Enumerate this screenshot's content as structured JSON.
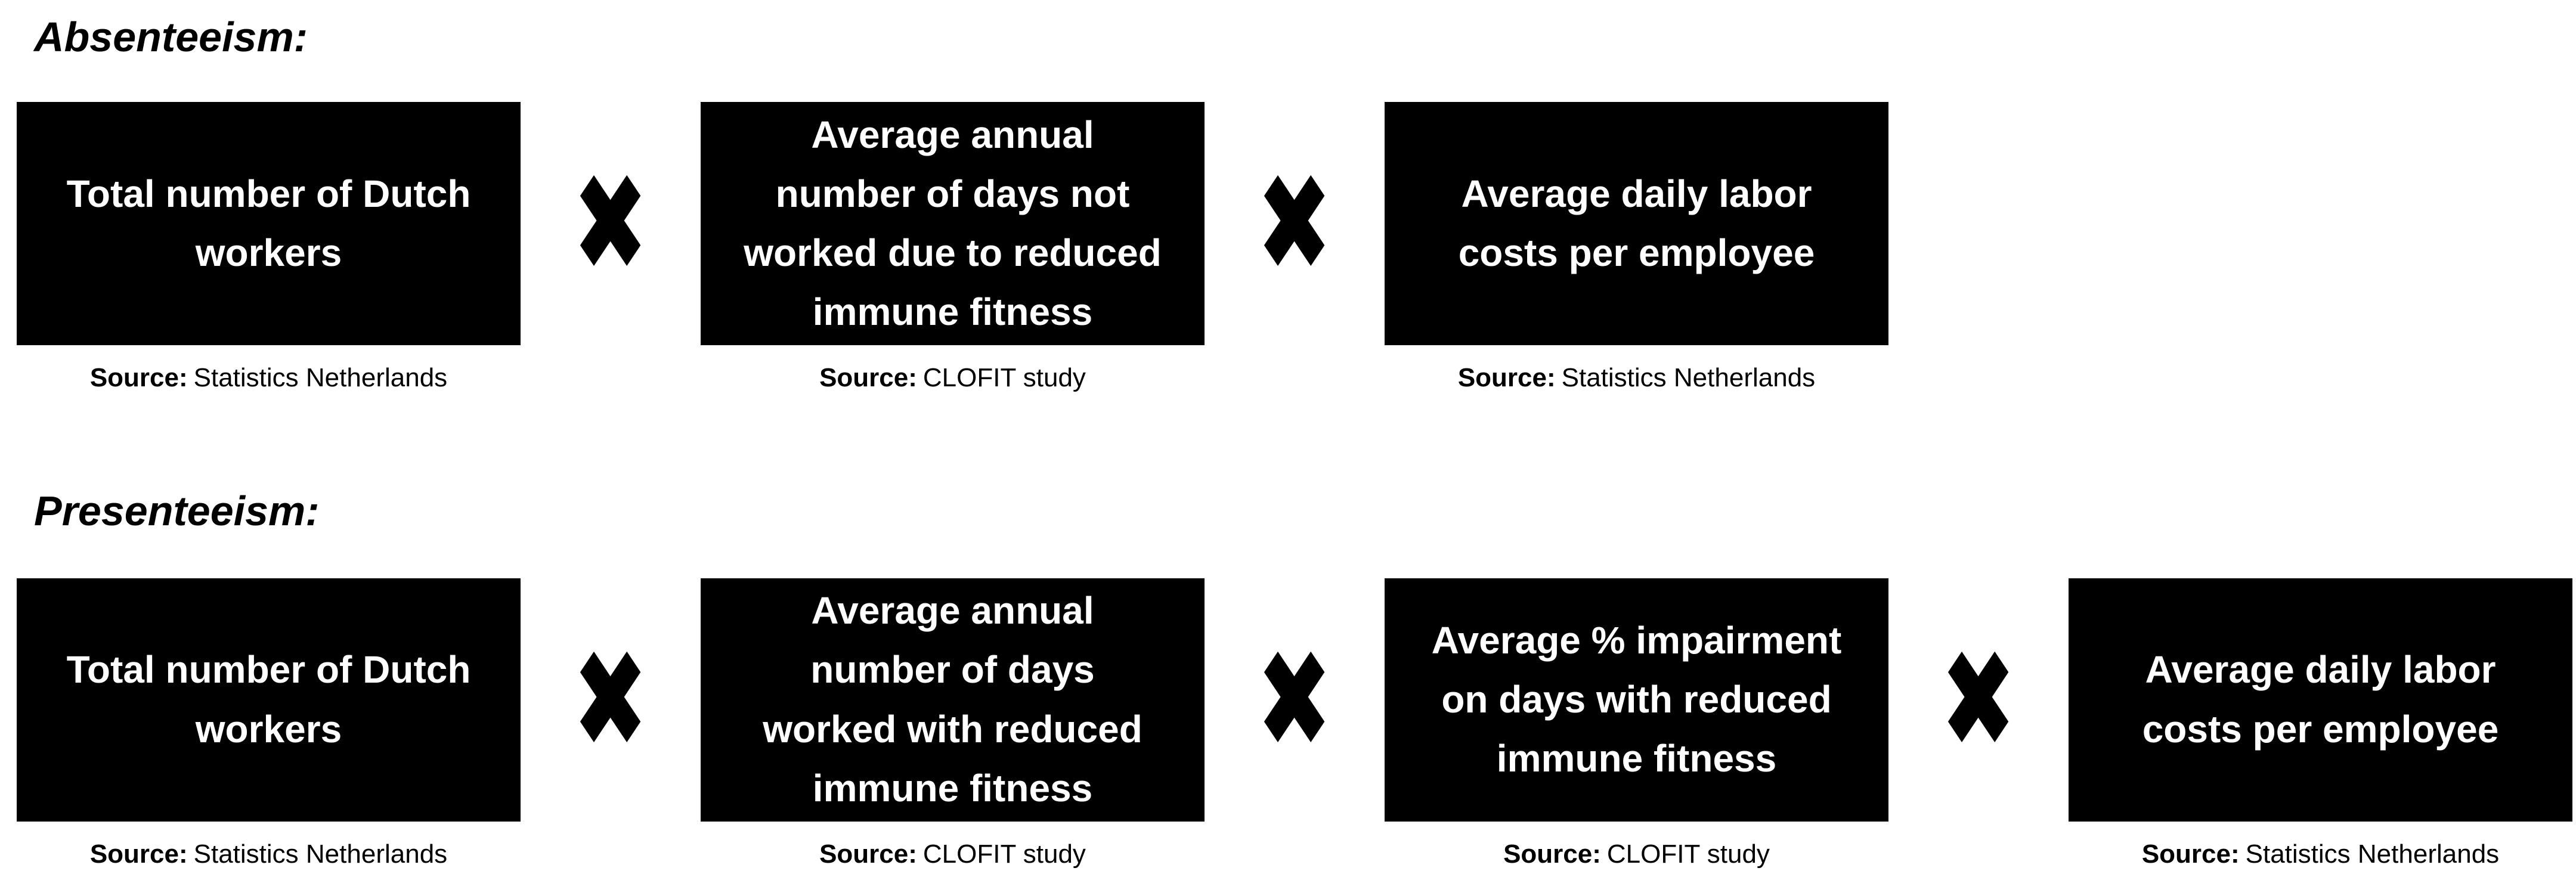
{
  "operator": "✖",
  "colors": {
    "background": "#ffffff",
    "box_background": "#000000",
    "box_text": "#ffffff",
    "heading_text": "#000000",
    "source_text": "#000000",
    "operator_color": "#000000"
  },
  "sections": [
    {
      "heading": "Absenteeism:",
      "boxes": [
        {
          "lines": [
            "Total number of Dutch",
            "workers"
          ],
          "source_label": "Source:",
          "source_value": "Statistics Netherlands"
        },
        {
          "lines": [
            "Average annual",
            "number of days not",
            "worked due to reduced",
            "immune fitness"
          ],
          "source_label": "Source:",
          "source_value": "CLOFIT study"
        },
        {
          "lines": [
            "Average daily labor",
            "costs per employee"
          ],
          "source_label": "Source:",
          "source_value": "Statistics Netherlands"
        }
      ]
    },
    {
      "heading": "Presenteeism:",
      "boxes": [
        {
          "lines": [
            "Total number of Dutch",
            "workers"
          ],
          "source_label": "Source:",
          "source_value": "Statistics Netherlands"
        },
        {
          "lines": [
            "Average annual",
            "number of days",
            "worked with reduced",
            "immune fitness"
          ],
          "source_label": "Source:",
          "source_value": "CLOFIT study"
        },
        {
          "lines": [
            "Average % impairment",
            "on days with reduced",
            "immune fitness"
          ],
          "source_label": "Source:",
          "source_value": "CLOFIT study"
        },
        {
          "lines": [
            "Average daily labor",
            "costs per employee"
          ],
          "source_label": "Source:",
          "source_value": "Statistics Netherlands"
        }
      ]
    }
  ]
}
